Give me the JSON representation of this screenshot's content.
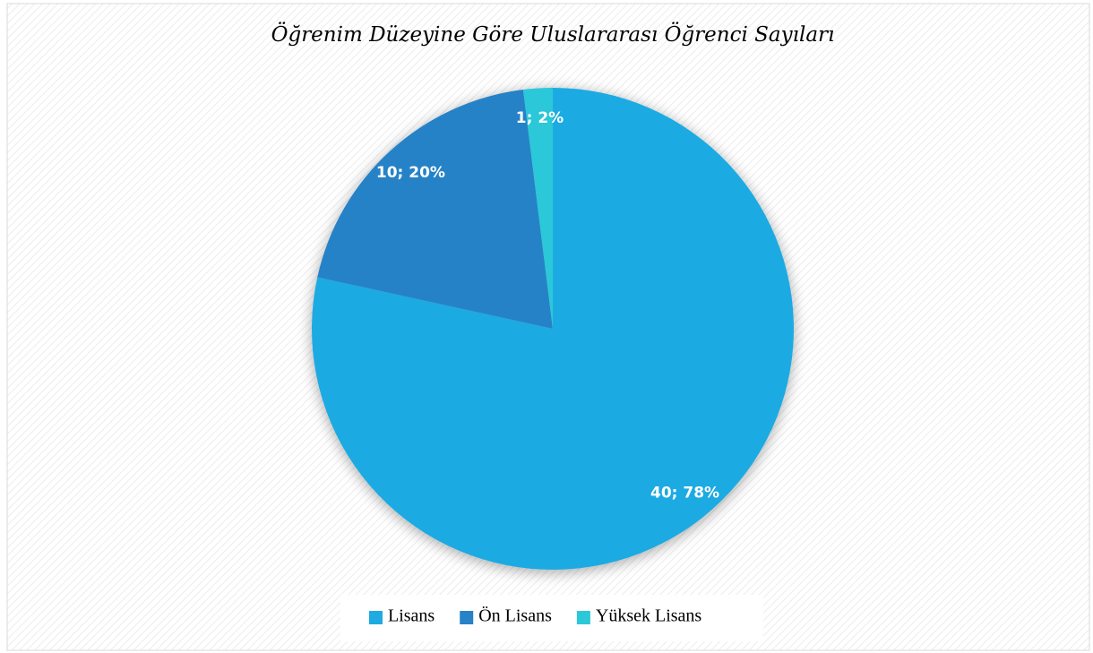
{
  "chart_data": {
    "type": "pie",
    "title": "Öğrenim Düzeyine Göre Uluslararası Öğrenci Sayıları",
    "categories": [
      "Lisans",
      "Ön Lisans",
      "Yüksek Lisans"
    ],
    "values": [
      40,
      10,
      1
    ],
    "value_labels": [
      "40; 78%",
      "10; 20%",
      "1; 2%"
    ],
    "colors": [
      "#1faae2",
      "#2782c7",
      "#2bc8d8"
    ],
    "legend": "bottom"
  }
}
